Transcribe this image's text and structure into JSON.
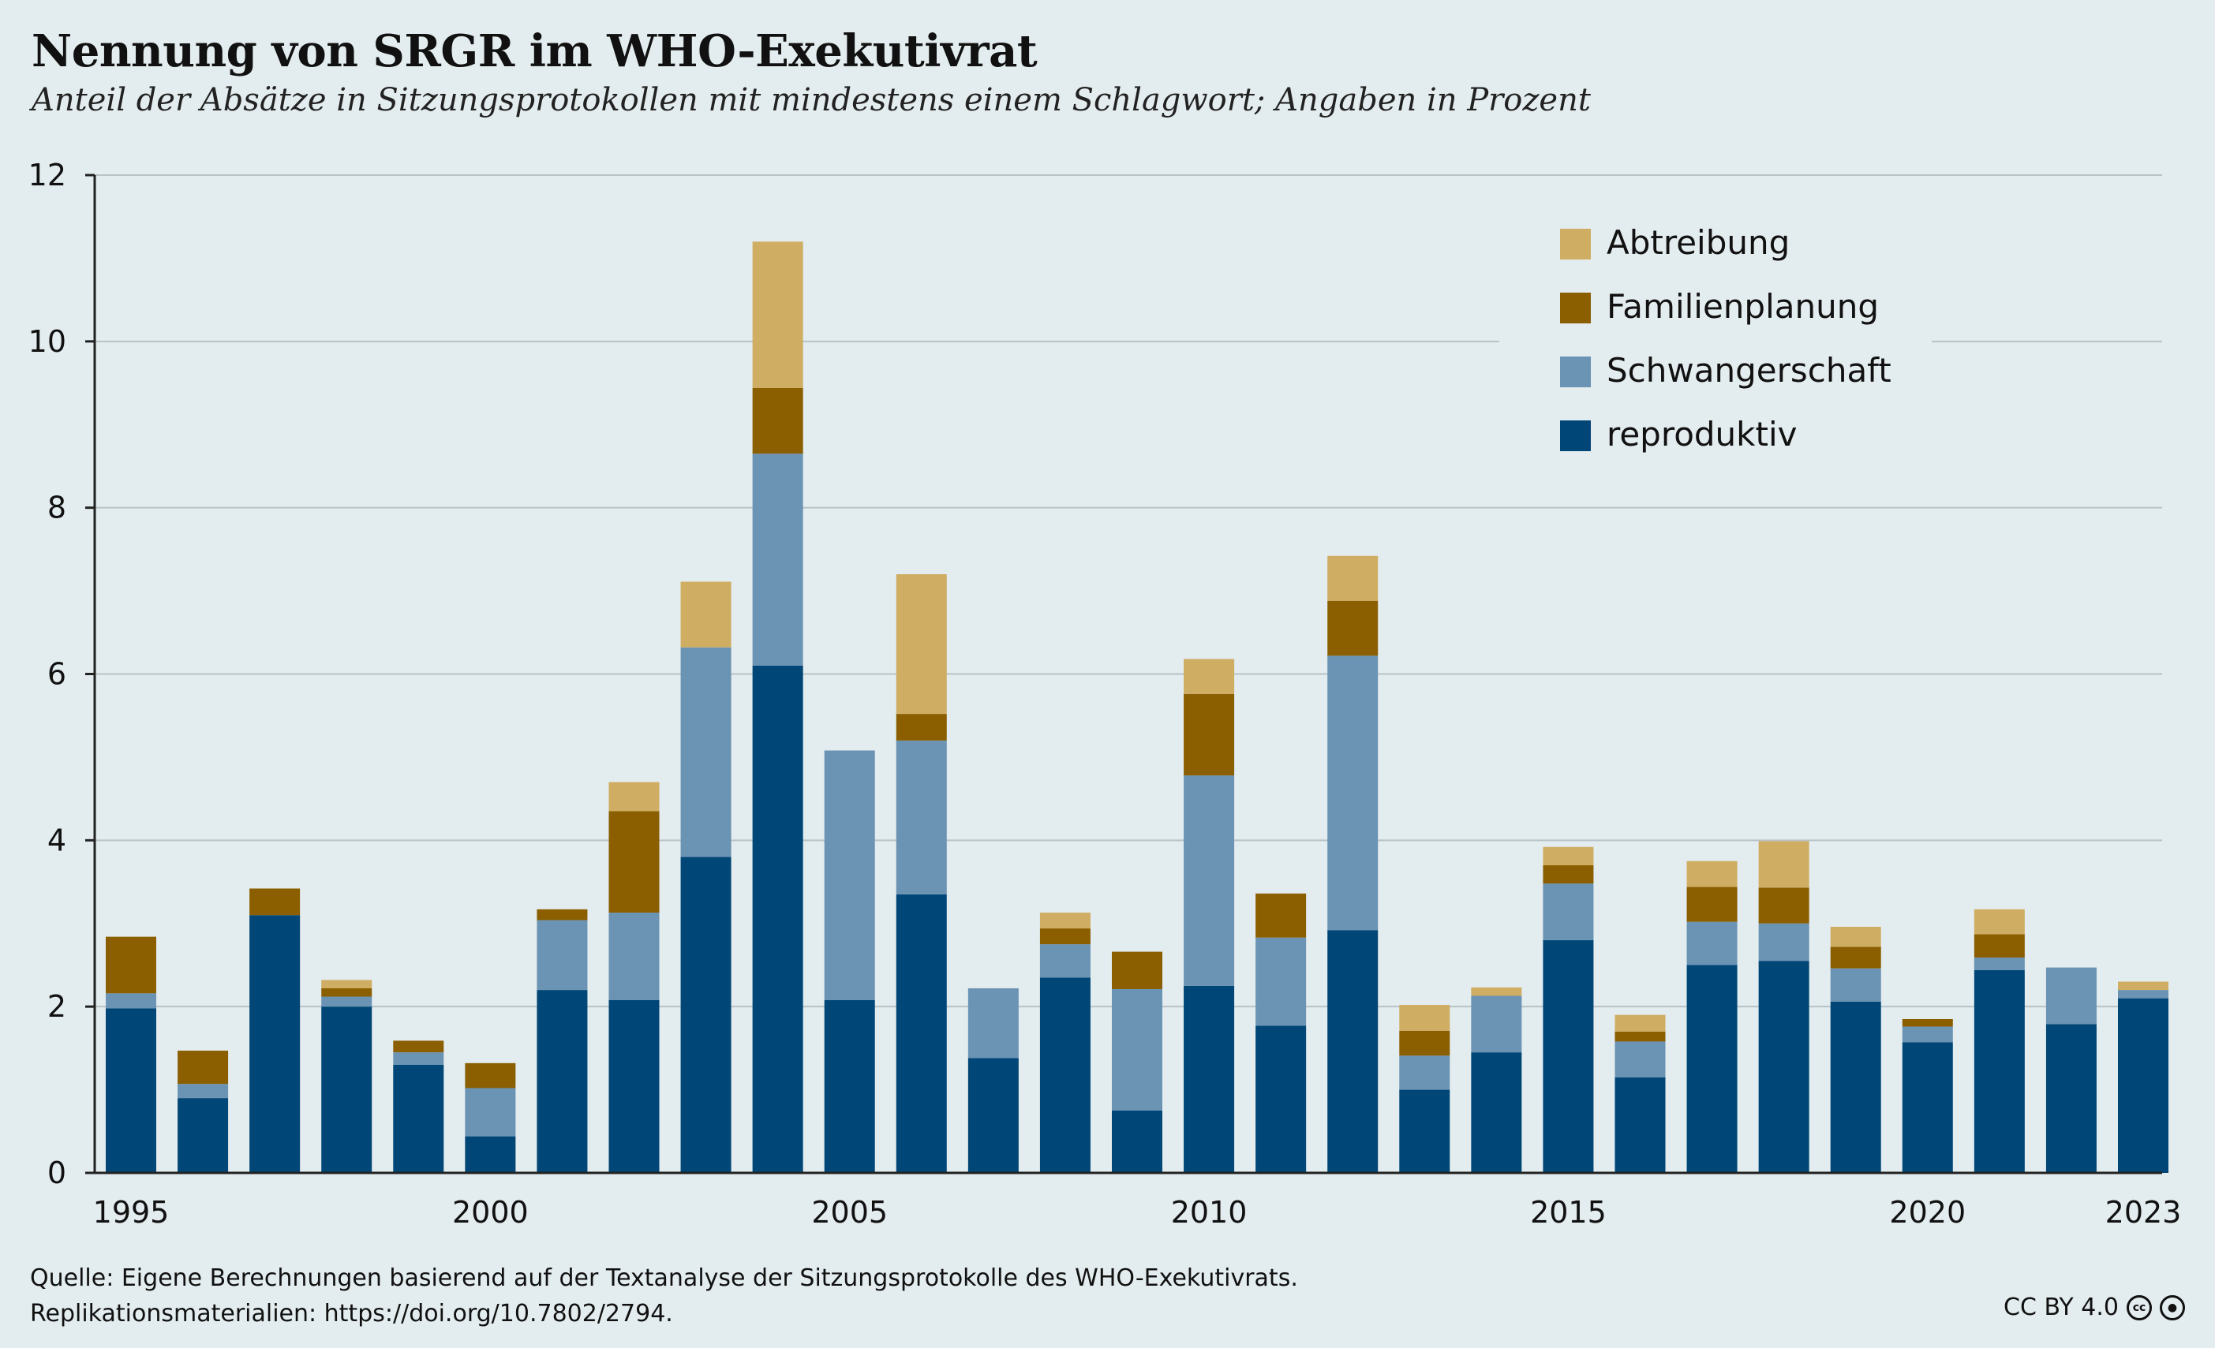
{
  "title": "Nennung von SRGR im WHO-Exekutivrat",
  "subtitle": "Anteil der Absätze in Sitzungsprotokollen mit mindestens einem Schlagwort; Angaben in Prozent",
  "source_line1": "Quelle: Eigene Berechnungen basierend auf der Textanalyse der Sitzungsprotokolle des WHO-Exekutivrats.",
  "source_line2": "Replikationsmaterialien: https://doi.org/10.7802/2794.",
  "license": "CC BY 4.0",
  "icons": [
    "cc-icon",
    "by-icon"
  ],
  "colors": {
    "reproduktiv": "#004676",
    "Schwangerschaft": "#6a93b4",
    "Familienplanung": "#8b5e00",
    "Abtreibung": "#cfad62"
  },
  "chart_data": {
    "type": "bar",
    "stacked": true,
    "categories": [
      1995,
      1996,
      1997,
      1998,
      1999,
      2000,
      2001,
      2002,
      2003,
      2004,
      2005,
      2006,
      2007,
      2008,
      2009,
      2010,
      2011,
      2012,
      2013,
      2014,
      2015,
      2016,
      2017,
      2018,
      2019,
      2020,
      2021,
      2022,
      2023
    ],
    "x_tick_labels": [
      "1995",
      "2000",
      "2005",
      "2010",
      "2015",
      "2020",
      "2023"
    ],
    "y_ticks": [
      0,
      2,
      4,
      6,
      8,
      10,
      12
    ],
    "ylim": [
      0,
      12
    ],
    "grid": "horizontal",
    "legend_position": "top-right",
    "series": [
      {
        "name": "reproduktiv",
        "values": [
          1.98,
          0.9,
          3.1,
          2.0,
          1.3,
          0.44,
          2.2,
          2.08,
          3.8,
          6.1,
          2.08,
          3.35,
          1.38,
          2.35,
          0.75,
          2.25,
          1.77,
          2.92,
          1.0,
          1.45,
          2.8,
          1.15,
          2.5,
          2.55,
          2.06,
          1.57,
          2.44,
          1.79,
          2.1
        ]
      },
      {
        "name": "Schwangerschaft",
        "values": [
          0.18,
          0.17,
          0.0,
          0.12,
          0.15,
          0.58,
          0.84,
          1.05,
          2.52,
          2.55,
          3.0,
          1.85,
          0.84,
          0.4,
          1.46,
          2.53,
          1.06,
          3.3,
          0.41,
          0.68,
          0.68,
          0.43,
          0.52,
          0.45,
          0.4,
          0.19,
          0.15,
          0.68,
          0.1
        ]
      },
      {
        "name": "Familienplanung",
        "values": [
          0.68,
          0.4,
          0.32,
          0.1,
          0.14,
          0.3,
          0.13,
          1.22,
          0.0,
          0.79,
          0.0,
          0.32,
          0.0,
          0.19,
          0.45,
          0.98,
          0.53,
          0.66,
          0.3,
          0.0,
          0.22,
          0.12,
          0.42,
          0.43,
          0.26,
          0.09,
          0.28,
          0.0,
          0.0
        ]
      },
      {
        "name": "Abtreibung",
        "values": [
          0.0,
          0.0,
          0.0,
          0.1,
          0.0,
          0.0,
          0.0,
          0.35,
          0.79,
          1.76,
          0.0,
          1.68,
          0.0,
          0.19,
          0.0,
          0.42,
          0.0,
          0.54,
          0.31,
          0.1,
          0.22,
          0.2,
          0.31,
          0.56,
          0.24,
          0.0,
          0.3,
          0.0,
          0.1
        ]
      }
    ],
    "legend_order": [
      "Abtreibung",
      "Familienplanung",
      "Schwangerschaft",
      "reproduktiv"
    ]
  }
}
